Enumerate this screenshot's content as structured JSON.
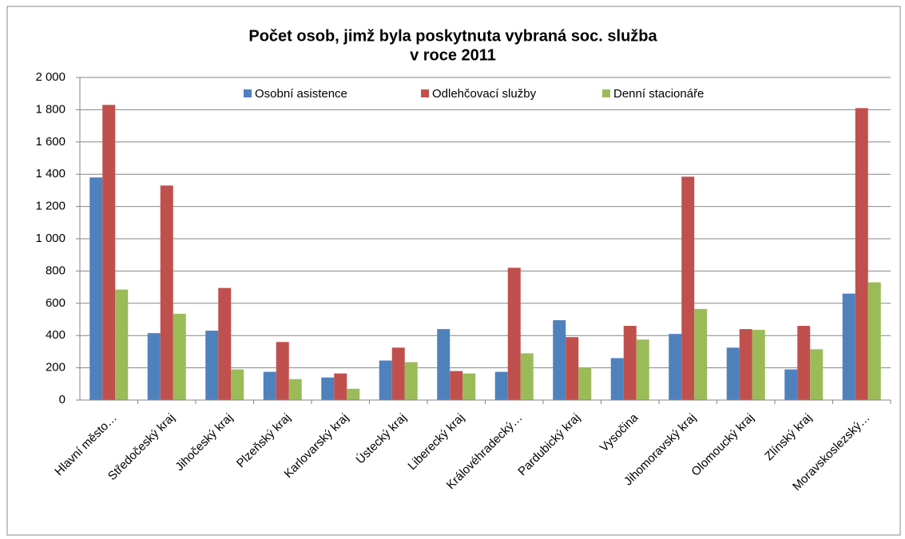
{
  "chart_data": {
    "type": "bar",
    "title": [
      "Počet osob, jimž byla poskytnuta vybraná soc. služba",
      "v roce 2011"
    ],
    "categories": [
      "Hlavní město…",
      "Středočeský kraj",
      "Jihočeský kraj",
      "Plzeňský kraj",
      "Karlovarský kraj",
      "Ústecký kraj",
      "Liberecký kraj",
      "Královéhradecký…",
      "Pardubický kraj",
      "Vysočina",
      "Jihomoravský kraj",
      "Olomoucký kraj",
      "Zlínský kraj",
      "Moravskoslezský…"
    ],
    "series": [
      {
        "name": "Osobní asistence",
        "color": "#4f81bd",
        "values": [
          1380,
          415,
          430,
          175,
          140,
          245,
          440,
          175,
          495,
          260,
          410,
          325,
          190,
          660
        ]
      },
      {
        "name": "Odlehčovací služby",
        "color": "#c0504d",
        "values": [
          1830,
          1330,
          695,
          360,
          165,
          325,
          180,
          820,
          390,
          460,
          1385,
          440,
          460,
          1810
        ]
      },
      {
        "name": "Denní stacionáře",
        "color": "#9bbb59",
        "values": [
          685,
          535,
          190,
          130,
          70,
          235,
          165,
          290,
          200,
          375,
          565,
          435,
          315,
          730
        ]
      }
    ],
    "ylim": [
      0,
      2000
    ],
    "yticks": [
      0,
      200,
      400,
      600,
      800,
      {
        "value": 1000,
        "label": "1 000"
      },
      {
        "value": 1200,
        "label": "1 200"
      },
      {
        "value": 1400,
        "label": "1 400"
      },
      {
        "value": 1600,
        "label": "1 600"
      },
      {
        "value": 1800,
        "label": "1 800"
      },
      {
        "value": 2000,
        "label": "2 000"
      }
    ],
    "grid": true,
    "legend": "top"
  }
}
